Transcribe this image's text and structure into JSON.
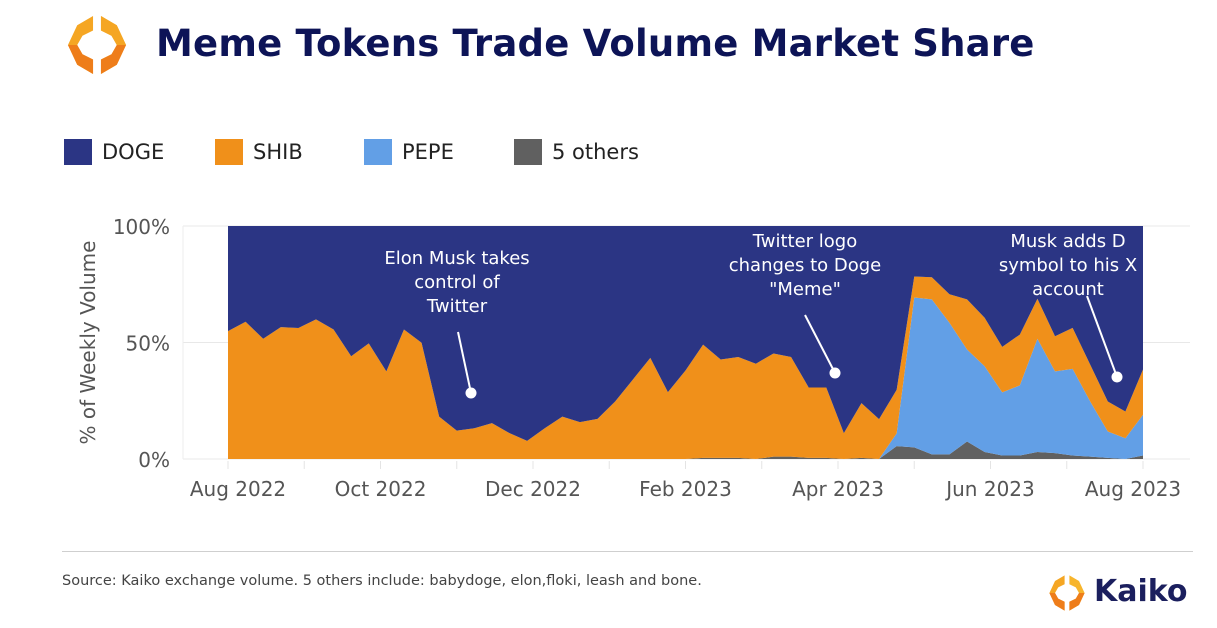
{
  "header": {
    "title": "Meme Tokens Trade Volume Market Share",
    "logo_text": "Kaiko"
  },
  "footer": {
    "source": "Source: Kaiko exchange volume. 5 others include: babydoge, elon,floki, leash and bone.",
    "brand": "Kaiko"
  },
  "chart_data": {
    "type": "area",
    "stacked": true,
    "normalized": true,
    "title": "Meme Tokens Trade Volume Market Share",
    "xlabel": "",
    "ylabel": "% of Weekly Volume",
    "ylim": [
      0,
      100
    ],
    "yticks": [
      "0%",
      "50%",
      "100%"
    ],
    "ytick_values": [
      0,
      50,
      100
    ],
    "xticks": [
      "Aug 2022",
      "Oct 2022",
      "Dec 2022",
      "Feb 2023",
      "Apr 2023",
      "Jun 2023",
      "Aug 2023"
    ],
    "xtick_month_index": [
      0,
      2,
      4,
      6,
      8,
      10,
      12
    ],
    "x_unit": "week (Aug 2022 – Aug 2023)",
    "x": [
      0,
      1,
      2,
      3,
      4,
      5,
      6,
      7,
      8,
      9,
      10,
      11,
      12,
      13,
      14,
      15,
      16,
      17,
      18,
      19,
      20,
      21,
      22,
      23,
      24,
      25,
      26,
      27,
      28,
      29,
      30,
      31,
      32,
      33,
      34,
      35,
      36,
      37,
      38,
      39,
      40,
      41,
      42,
      43,
      44,
      45,
      46,
      47,
      48,
      49,
      50,
      51,
      52
    ],
    "legend_position": "top-left",
    "grid": true,
    "series": [
      {
        "name": "DOGE",
        "color": "#2b3584",
        "values": [
          45.1,
          41.1,
          48.4,
          43.4,
          43.8,
          40.1,
          44.4,
          55.9,
          50.4,
          62.4,
          44.4,
          50.1,
          81.8,
          87.8,
          86.8,
          84.6,
          88.9,
          92.2,
          86.8,
          81.8,
          84.2,
          82.8,
          75.3,
          66,
          56.6,
          71.3,
          62,
          50.9,
          57.3,
          56.2,
          59.1,
          54.7,
          56.2,
          69.3,
          69.3,
          88.9,
          76,
          82.9,
          70.3,
          21.7,
          22,
          29.3,
          31.5,
          39.4,
          51.9,
          46.6,
          31.2,
          47.3,
          43.7,
          59.5,
          75.3,
          79.6,
          61.6
        ]
      },
      {
        "name": "SHIB",
        "color": "#f0901a",
        "values": [
          54.9,
          58.9,
          51.6,
          56.6,
          56.2,
          59.9,
          55.6,
          44.1,
          49.6,
          37.6,
          55.6,
          49.9,
          18.2,
          12.2,
          13.2,
          15.4,
          11.1,
          7.8,
          13.2,
          18.2,
          15.8,
          17.2,
          24.7,
          34,
          43.4,
          28.7,
          38,
          48.6,
          42.2,
          43.3,
          40.9,
          44.3,
          42.8,
          30.2,
          30.2,
          11.1,
          23.5,
          17.1,
          18.7,
          9,
          9.5,
          12.2,
          21.5,
          20.8,
          19.5,
          21.8,
          17.2,
          15.1,
          17.6,
          15.8,
          12.9,
          11.5,
          19.4
        ]
      },
      {
        "name": "PEPE",
        "color": "#629fe6",
        "values": [
          0,
          0,
          0,
          0,
          0,
          0,
          0,
          0,
          0,
          0,
          0,
          0,
          0,
          0,
          0,
          0,
          0,
          0,
          0,
          0,
          0,
          0,
          0,
          0,
          0,
          0,
          0,
          0,
          0,
          0,
          0,
          0,
          0,
          0,
          0,
          0,
          0,
          0,
          5.5,
          64.3,
          66.5,
          56.5,
          39.5,
          36.8,
          27.1,
          30.1,
          48.6,
          35.1,
          37.2,
          23.7,
          11.3,
          8.9,
          17.5
        ]
      },
      {
        "name": "5 others",
        "color": "#606060",
        "values": [
          0,
          0,
          0,
          0,
          0,
          0,
          0,
          0,
          0,
          0,
          0,
          0,
          0,
          0,
          0,
          0,
          0,
          0,
          0,
          0,
          0,
          0,
          0,
          0,
          0,
          0,
          0,
          0.5,
          0.5,
          0.5,
          0,
          1,
          1,
          0.5,
          0.5,
          0,
          0.5,
          0,
          5.5,
          5,
          2,
          2,
          7.5,
          3,
          1.5,
          1.5,
          3,
          2.5,
          1.5,
          1,
          0.5,
          0,
          1.5
        ]
      }
    ],
    "annotations": [
      {
        "lines": [
          "Elon Musk takes",
          "control of",
          "Twitter"
        ],
        "week": 14
      },
      {
        "lines": [
          "Twitter logo",
          "changes to Doge",
          "\"Meme\""
        ],
        "week": 35
      },
      {
        "lines": [
          "Musk adds D",
          "symbol to his X",
          "account"
        ],
        "week": 51
      }
    ]
  }
}
